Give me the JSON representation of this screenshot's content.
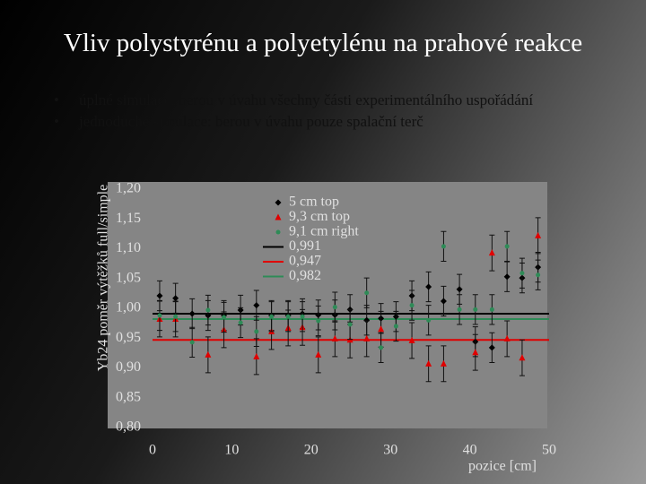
{
  "title": "Vliv polystyrénu a polyetylénu na prahové reakce",
  "bullets": [
    "úplné simulace: berou v úvahu všechny části experimentálního uspořádání",
    "jednoduché simulace: berou v úvahu pouze spalační terč"
  ],
  "chart_data": {
    "type": "scatter",
    "x_label": "pozice [cm]",
    "y_label": "Yb24 poměr výtěžků full/simple",
    "xlim": [
      0,
      50
    ],
    "xticks": [
      0,
      10,
      20,
      30,
      40,
      50
    ],
    "ylim": [
      0.8,
      1.2
    ],
    "yticks": [
      {
        "value": 0.8,
        "label": "0,80"
      },
      {
        "value": 0.85,
        "label": "0,85"
      },
      {
        "value": 0.9,
        "label": "0,90"
      },
      {
        "value": 0.95,
        "label": "0,95"
      },
      {
        "value": 1.0,
        "label": "1,00"
      },
      {
        "value": 1.05,
        "label": "1,05"
      },
      {
        "value": 1.1,
        "label": "1,10"
      },
      {
        "value": 1.15,
        "label": "1,15"
      },
      {
        "value": 1.2,
        "label": "1,20"
      }
    ],
    "series": [
      {
        "name": "5 cm top",
        "color": "#000000",
        "marker": "diamond",
        "error": 0.025,
        "x": [
          0.9,
          2.9,
          5.0,
          7.0,
          9.0,
          11.1,
          13.1,
          15.0,
          17.1,
          18.9,
          20.9,
          23.0,
          24.9,
          27.0,
          28.8,
          30.7,
          32.7,
          34.8,
          36.7,
          38.7,
          40.7,
          42.8,
          44.7,
          46.6,
          48.6
        ],
        "values": [
          1.021,
          1.017,
          0.991,
          0.988,
          0.988,
          0.997,
          1.005,
          0.988,
          0.988,
          0.991,
          0.989,
          0.989,
          0.998,
          0.98,
          0.983,
          0.986,
          1.021,
          1.036,
          1.012,
          1.032,
          0.944,
          0.934,
          1.053,
          1.051,
          1.069
        ]
      },
      {
        "name": "9,3 cm top",
        "color": "#e00000",
        "marker": "triangle",
        "error": 0.03,
        "x": [
          0.9,
          2.9,
          7.0,
          9.0,
          13.1,
          15.0,
          17.1,
          18.9,
          20.9,
          23.0,
          24.9,
          27.0,
          28.8,
          32.7,
          34.8,
          36.7,
          40.7,
          42.8,
          44.7,
          46.6,
          48.6
        ],
        "values": [
          0.982,
          0.982,
          0.922,
          0.964,
          0.919,
          0.961,
          0.967,
          0.968,
          0.922,
          0.949,
          0.947,
          0.949,
          0.965,
          0.946,
          0.907,
          0.907,
          0.926,
          1.093,
          0.949,
          0.917,
          1.122
        ]
      },
      {
        "name": "9,1 cm right",
        "color": "#2e8b57",
        "marker": "circle",
        "error": 0.025,
        "x": [
          0.9,
          2.9,
          5.0,
          7.0,
          9.0,
          11.1,
          13.1,
          15.0,
          17.1,
          18.9,
          20.9,
          23.0,
          24.9,
          27.0,
          28.8,
          30.7,
          32.7,
          34.8,
          36.7,
          38.7,
          40.7,
          42.8,
          44.7,
          46.6,
          48.6
        ],
        "values": [
          0.988,
          0.986,
          0.943,
          0.997,
          0.985,
          0.976,
          0.961,
          0.986,
          0.986,
          0.986,
          0.979,
          1.002,
          0.973,
          1.026,
          0.934,
          0.97,
          1.005,
          0.98,
          1.104,
          0.998,
          0.998,
          0.998,
          1.104,
          1.059,
          1.056
        ]
      }
    ],
    "lines": [
      {
        "name": "0,991",
        "value": 0.991,
        "color": "#000000"
      },
      {
        "name": "0,947",
        "value": 0.947,
        "color": "#e00000"
      },
      {
        "name": "0,982",
        "value": 0.982,
        "color": "#2e8b57"
      }
    ]
  }
}
